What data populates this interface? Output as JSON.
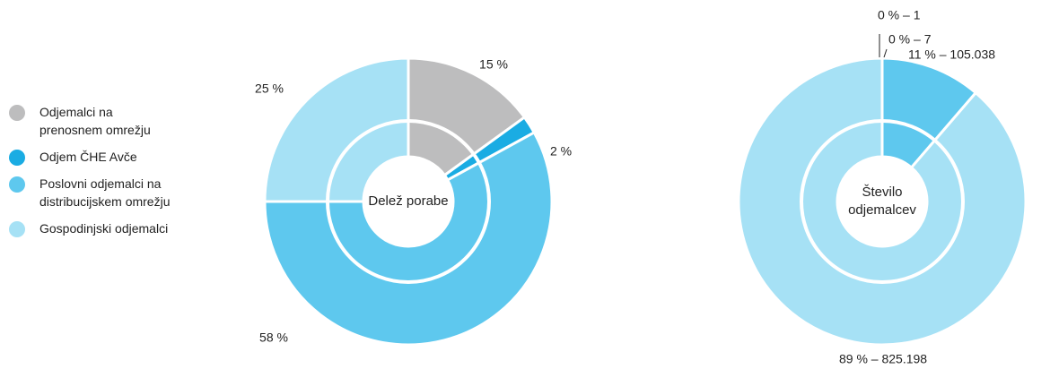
{
  "chart_data": [
    {
      "type": "donut",
      "categories": [
        "Odjemalci na prenosnem omrežju",
        "Odjem ČHE Avče",
        "Poslovni odjemalci na distribucijskem omrežju",
        "Gospodinjski odjemalci"
      ],
      "colors": [
        "#bdbdbe",
        "#1aace3",
        "#5ec8ee",
        "#a6e1f5"
      ],
      "center_label": "Delež porabe",
      "values": [
        15,
        2,
        58,
        25
      ],
      "value_labels": [
        "15 %",
        "2 %",
        "58 %",
        "25 %"
      ]
    },
    {
      "type": "donut",
      "colors": [
        "#bdbdbe",
        "#1aace3",
        "#5ec8ee",
        "#a6e1f5"
      ],
      "center_label": "Število odjemalcev",
      "values": [
        1,
        7,
        105038,
        825198
      ],
      "value_labels": [
        "0 % – 1",
        "0 % – 7",
        "11 % – 105.038",
        "89 % – 825.198"
      ]
    }
  ]
}
